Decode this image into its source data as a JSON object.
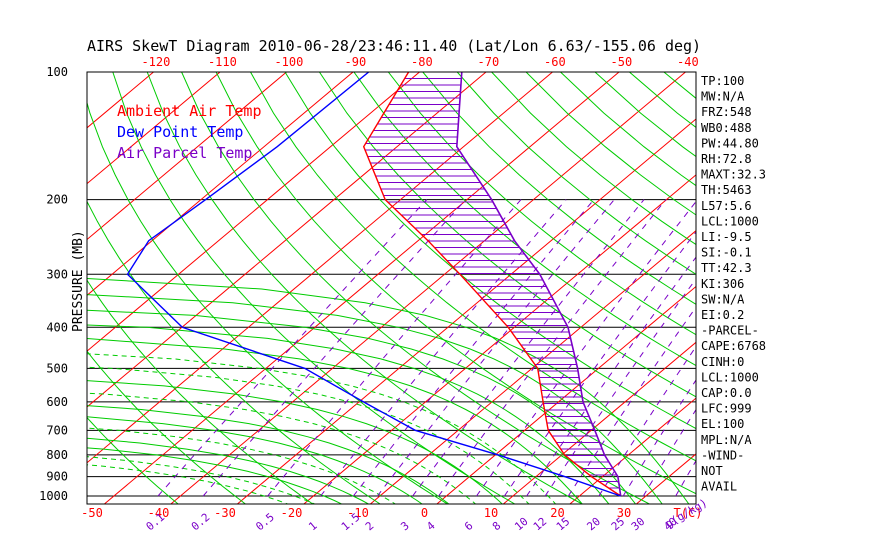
{
  "chart_data": {
    "type": "skewt",
    "title": "AIRS SkewT Diagram 2010-06-28/23:46:11.40 (Lat/Lon 6.63/-155.06 deg)",
    "ylabel": "PRESSURE (MB)",
    "xlabel_bottom_unit": "T(C)",
    "mixing_ratio_unit": "g(g/kg)",
    "pressure_ticks": [
      "100",
      "200",
      "300",
      "400",
      "500",
      "600",
      "700",
      "800",
      "900",
      "1000"
    ],
    "pressure_values": [
      100,
      200,
      300,
      400,
      500,
      600,
      700,
      800,
      900,
      1000
    ],
    "bottom_temp_ticks": [
      "-50",
      "-40",
      "-30",
      "-20",
      "-10",
      "0",
      "10",
      "20",
      "30"
    ],
    "top_temp_ticks": [
      "-120",
      "-110",
      "-100",
      "-90",
      "-80",
      "-70",
      "-60",
      "-50",
      "-40"
    ],
    "mixing_ratio_ticks": [
      "0.1",
      "0.2",
      "0.5",
      "1",
      "1.5",
      "2",
      "3",
      "4",
      "6",
      "8",
      "10",
      "12",
      "15",
      "20",
      "25",
      "30",
      "40"
    ],
    "legend": [
      {
        "label": "Ambient Air Temp",
        "color": "#ff0000"
      },
      {
        "label": "Dew Point Temp",
        "color": "#0000ff"
      },
      {
        "label": "Air Parcel Temp",
        "color": "#7a00c8"
      }
    ],
    "colors": {
      "isotherm": "#ff0000",
      "dry_adiabat": "#00cc00",
      "moist_adiabat": "#00cc00",
      "mixing_ratio": "#7a00c8",
      "isobar": "#000000",
      "cape_hatch": "#7a00c8"
    },
    "ambient_temp": {
      "p": [
        100,
        150,
        200,
        250,
        300,
        400,
        500,
        600,
        700,
        800,
        900,
        1000
      ],
      "t": [
        -82,
        -75,
        -62,
        -48,
        -37,
        -20,
        -8,
        -1,
        5,
        12,
        20,
        28
      ]
    },
    "dew_point": {
      "p": [
        100,
        150,
        200,
        250,
        300,
        400,
        500,
        600,
        700,
        800,
        900,
        1000
      ],
      "t": [
        -88,
        -88,
        -89,
        -90,
        -87,
        -69,
        -43,
        -28,
        -15,
        2,
        16,
        28
      ]
    },
    "parcel_temp": {
      "p": [
        100,
        150,
        200,
        250,
        300,
        400,
        500,
        600,
        700,
        800,
        900,
        1000
      ],
      "t": [
        -74,
        -61,
        -46,
        -35,
        -25,
        -11,
        -2,
        5,
        12,
        18,
        24,
        28
      ]
    }
  },
  "indices": [
    "TP:100",
    "MW:N/A",
    "FRZ:548",
    "WB0:488",
    "PW:44.80",
    "RH:72.8",
    "MAXT:32.3",
    "TH:5463",
    "L57:5.6",
    "LCL:1000",
    "LI:-9.5",
    "SI:-0.1",
    "TT:42.3",
    "KI:306",
    "SW:N/A",
    "EI:0.2",
    "-PARCEL-",
    "CAPE:6768",
    "CINH:0",
    "LCL:1000",
    "CAP:0.0",
    "LFC:999",
    "EL:100",
    "MPL:N/A",
    "-WIND-",
    "NOT",
    "AVAIL"
  ]
}
